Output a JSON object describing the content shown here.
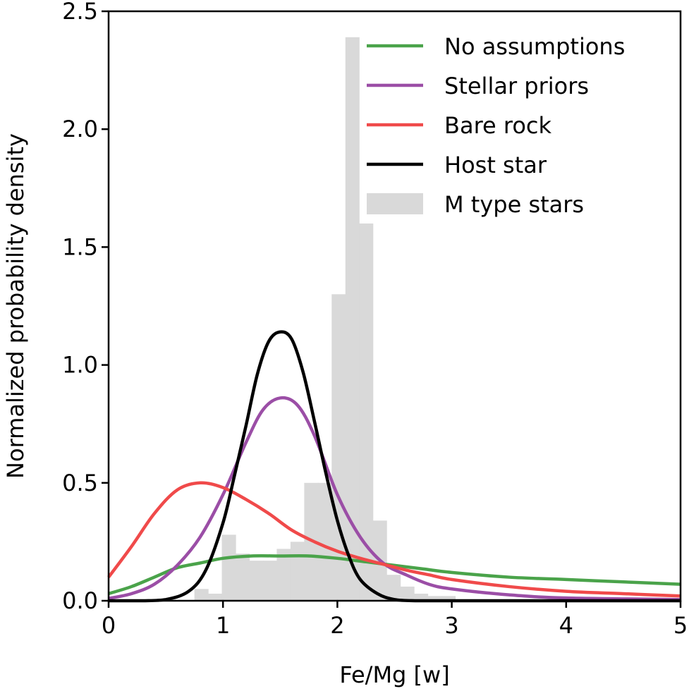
{
  "chart_data": {
    "type": "line",
    "title": "",
    "xlabel": "Fe/Mg [w]",
    "ylabel": "Normalized probability density",
    "xlim": [
      0,
      5
    ],
    "ylim": [
      0,
      2.5
    ],
    "x_ticks": [
      0,
      1,
      2,
      3,
      4,
      5
    ],
    "x_tick_labels": [
      "0",
      "1",
      "2",
      "3",
      "4",
      "5"
    ],
    "y_ticks": [
      0.0,
      0.5,
      1.0,
      1.5,
      2.0,
      2.5
    ],
    "y_tick_labels": [
      "0.0",
      "0.5",
      "1.0",
      "1.5",
      "2.0",
      "2.5"
    ],
    "grid": false,
    "legend_position": "top-right",
    "histogram": {
      "name": "M type stars",
      "color": "#d9d9d9",
      "bins": [
        {
          "x0": 0.75,
          "x1": 0.87,
          "value": 0.05
        },
        {
          "x0": 0.87,
          "x1": 0.99,
          "value": 0.03
        },
        {
          "x0": 0.99,
          "x1": 1.11,
          "value": 0.28
        },
        {
          "x0": 1.11,
          "x1": 1.23,
          "value": 0.2
        },
        {
          "x0": 1.23,
          "x1": 1.35,
          "value": 0.17
        },
        {
          "x0": 1.35,
          "x1": 1.47,
          "value": 0.17
        },
        {
          "x0": 1.47,
          "x1": 1.59,
          "value": 0.22
        },
        {
          "x0": 1.59,
          "x1": 1.71,
          "value": 0.25
        },
        {
          "x0": 1.71,
          "x1": 1.83,
          "value": 0.5
        },
        {
          "x0": 1.83,
          "x1": 1.95,
          "value": 0.5
        },
        {
          "x0": 1.95,
          "x1": 2.07,
          "value": 1.3
        },
        {
          "x0": 2.07,
          "x1": 2.19,
          "value": 2.39
        },
        {
          "x0": 2.19,
          "x1": 2.31,
          "value": 1.6
        },
        {
          "x0": 2.31,
          "x1": 2.43,
          "value": 0.34
        },
        {
          "x0": 2.43,
          "x1": 2.55,
          "value": 0.11
        },
        {
          "x0": 2.55,
          "x1": 2.67,
          "value": 0.06
        },
        {
          "x0": 2.67,
          "x1": 2.79,
          "value": 0.03
        },
        {
          "x0": 2.79,
          "x1": 2.91,
          "value": 0.02
        },
        {
          "x0": 2.91,
          "x1": 3.03,
          "value": 0.02
        }
      ]
    },
    "series": [
      {
        "name": "No assumptions",
        "color": "#4aa34a",
        "x": [
          0,
          0.2,
          0.4,
          0.6,
          0.8,
          1.0,
          1.25,
          1.5,
          1.75,
          2.0,
          2.25,
          2.5,
          2.75,
          3.0,
          3.5,
          4.0,
          4.5,
          5.0
        ],
        "y": [
          0.03,
          0.06,
          0.1,
          0.14,
          0.16,
          0.18,
          0.19,
          0.19,
          0.19,
          0.18,
          0.165,
          0.15,
          0.135,
          0.12,
          0.1,
          0.09,
          0.08,
          0.07
        ]
      },
      {
        "name": "Stellar priors",
        "color": "#9b4ea6",
        "x": [
          0,
          0.2,
          0.4,
          0.6,
          0.8,
          1.0,
          1.2,
          1.35,
          1.5,
          1.65,
          1.8,
          2.0,
          2.2,
          2.4,
          2.6,
          2.8,
          3.0,
          3.5,
          4.0,
          5.0
        ],
        "y": [
          0.01,
          0.03,
          0.07,
          0.15,
          0.27,
          0.45,
          0.67,
          0.81,
          0.86,
          0.83,
          0.7,
          0.45,
          0.27,
          0.16,
          0.11,
          0.07,
          0.05,
          0.025,
          0.012,
          0.005
        ]
      },
      {
        "name": "Bare rock",
        "color": "#f04a4a",
        "x": [
          0,
          0.2,
          0.4,
          0.6,
          0.8,
          1.0,
          1.2,
          1.4,
          1.6,
          1.8,
          2.0,
          2.2,
          2.4,
          2.6,
          2.8,
          3.0,
          3.5,
          4.0,
          4.5,
          5.0
        ],
        "y": [
          0.1,
          0.23,
          0.37,
          0.47,
          0.5,
          0.48,
          0.43,
          0.37,
          0.3,
          0.25,
          0.21,
          0.18,
          0.155,
          0.13,
          0.11,
          0.09,
          0.06,
          0.04,
          0.03,
          0.02
        ]
      },
      {
        "name": "Host star",
        "color": "#000000",
        "x": [
          0,
          0.3,
          0.5,
          0.7,
          0.85,
          1.0,
          1.1,
          1.2,
          1.3,
          1.4,
          1.5,
          1.6,
          1.7,
          1.8,
          1.9,
          2.0,
          2.1,
          2.2,
          2.35,
          2.5,
          2.7,
          3.0,
          5.0
        ],
        "y": [
          0,
          0.0,
          0.005,
          0.04,
          0.13,
          0.33,
          0.53,
          0.74,
          0.96,
          1.1,
          1.14,
          1.11,
          0.97,
          0.76,
          0.54,
          0.34,
          0.19,
          0.09,
          0.03,
          0.005,
          0.0,
          0.0,
          0.0
        ]
      }
    ]
  }
}
